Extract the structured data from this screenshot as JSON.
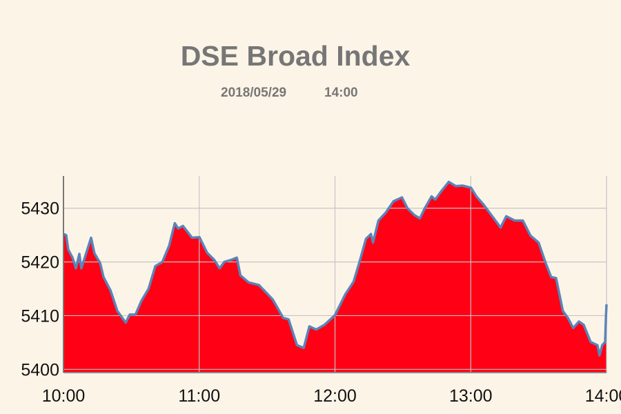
{
  "chart_data": {
    "type": "area",
    "title": "DSE Broad Index",
    "date": "2018/05/29",
    "time": "14:00",
    "xlabel": "",
    "ylabel": "",
    "x_ticks": [
      "10:00",
      "11:00",
      "12:00",
      "13:00",
      "14:00"
    ],
    "y_ticks": [
      5400,
      5410,
      5420,
      5430
    ],
    "ylim": [
      5399.4,
      5436
    ],
    "xlim_minutes_from_10": [
      0,
      240
    ],
    "grid": true,
    "fill_color": "#ff0015",
    "line_color": "#5b84b8",
    "series": [
      {
        "name": "DSE Broad Index",
        "minutes": [
          0,
          1.2,
          2.1,
          4,
          5.5,
          7,
          7.9,
          10.1,
          12.2,
          13.7,
          16.2,
          17.7,
          20.8,
          23.8,
          27.5,
          29.3,
          31.8,
          34.5,
          37.6,
          40.6,
          43.7,
          46.7,
          49.2,
          50.7,
          52.8,
          56.8,
          60.1,
          63.5,
          66.6,
          69,
          71.1,
          74.2,
          76.6,
          78.2,
          81.8,
          86.4,
          92.5,
          97.1,
          99.5,
          103.2,
          106.2,
          108.7,
          111.7,
          115.4,
          120,
          124.6,
          128.2,
          130.7,
          133.7,
          135.9,
          136.8,
          139.2,
          142.3,
          145.9,
          149.6,
          152,
          155.1,
          157.5,
          159.7,
          162.7,
          164.3,
          166.7,
          170.3,
          173.4,
          176.4,
          180.1,
          182.5,
          185.6,
          190.2,
          193.2,
          195.7,
          199.4,
          203,
          206.4,
          210,
          213.1,
          215.5,
          217.7,
          220.7,
          222.9,
          225.3,
          227.8,
          229.9,
          233,
          236,
          236.9,
          238.1,
          239.4,
          239.8,
          240
        ],
        "values": [
          5425.2,
          5425,
          5422.3,
          5420.8,
          5418.8,
          5421.5,
          5418.8,
          5421.7,
          5424.5,
          5421.6,
          5419.8,
          5417.2,
          5414.7,
          5410.9,
          5408.7,
          5410.2,
          5410.2,
          5412.8,
          5415,
          5419.2,
          5420,
          5423,
          5427.2,
          5426.2,
          5426.7,
          5424.5,
          5424.6,
          5421.7,
          5420.4,
          5418.8,
          5420,
          5420.4,
          5420.8,
          5417.5,
          5416.2,
          5415.7,
          5413,
          5409.6,
          5409.3,
          5404.5,
          5404,
          5408,
          5407.4,
          5408.3,
          5410.1,
          5414,
          5416.3,
          5419.8,
          5424.3,
          5425.2,
          5423.6,
          5427.7,
          5429.1,
          5431.3,
          5432,
          5430,
          5428.7,
          5428.1,
          5430,
          5432.2,
          5431.6,
          5433,
          5434.9,
          5434.1,
          5434.2,
          5433.8,
          5432.2,
          5430.7,
          5428.1,
          5426.4,
          5428.5,
          5427.7,
          5427.7,
          5424.9,
          5423.6,
          5419.8,
          5417.2,
          5417,
          5410.9,
          5409.6,
          5407.7,
          5408.9,
          5408.3,
          5405.1,
          5404.5,
          5402.6,
          5404.5,
          5405.1,
          5410.2,
          5412.1
        ]
      }
    ]
  }
}
